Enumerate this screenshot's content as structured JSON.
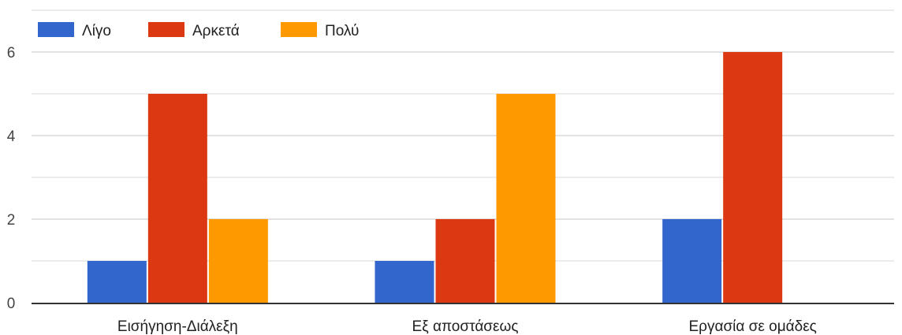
{
  "chart_data": {
    "type": "bar",
    "categories": [
      "Εισήγηση-Διάλεξη",
      "Εξ αποστάσεως",
      "Εργασία σε ομάδες"
    ],
    "series": [
      {
        "name": "Λίγο",
        "values": [
          1,
          1,
          2
        ],
        "color": "#3366cc"
      },
      {
        "name": "Αρκετά",
        "values": [
          5,
          2,
          6
        ],
        "color": "#dc3912"
      },
      {
        "name": "Πολύ",
        "values": [
          2,
          5,
          0
        ],
        "color": "#ff9900"
      }
    ],
    "yticks": [
      0,
      2,
      4,
      6
    ],
    "ylim": [
      0,
      6
    ],
    "grid": true,
    "legend_position": "top-left",
    "xlabel": "",
    "ylabel": ""
  }
}
